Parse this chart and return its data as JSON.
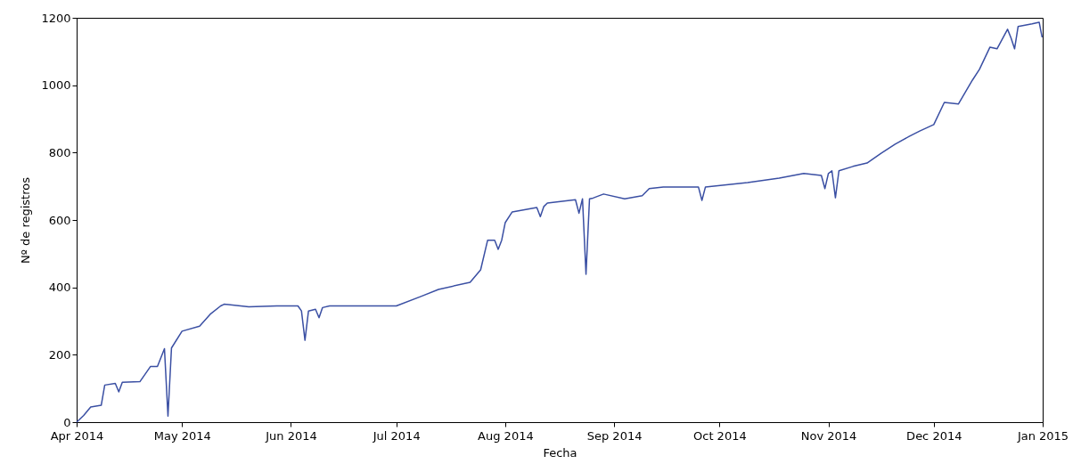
{
  "chart_data": {
    "type": "line",
    "xlabel": "Fecha",
    "ylabel": "Nº de registros",
    "x": [
      "2014-04-01",
      "2014-04-03",
      "2014-04-05",
      "2014-04-08",
      "2014-04-09",
      "2014-04-12",
      "2014-04-13",
      "2014-04-14",
      "2014-04-19",
      "2014-04-22",
      "2014-04-24",
      "2014-04-26",
      "2014-04-27",
      "2014-04-28",
      "2014-05-01",
      "2014-05-06",
      "2014-05-09",
      "2014-05-12",
      "2014-05-13",
      "2014-05-20",
      "2014-05-28",
      "2014-06-03",
      "2014-06-04",
      "2014-06-05",
      "2014-06-06",
      "2014-06-08",
      "2014-06-09",
      "2014-06-10",
      "2014-06-12",
      "2014-06-20",
      "2014-07-01",
      "2014-07-08",
      "2014-07-13",
      "2014-07-22",
      "2014-07-25",
      "2014-07-27",
      "2014-07-29",
      "2014-07-30",
      "2014-07-31",
      "2014-08-01",
      "2014-08-03",
      "2014-08-10",
      "2014-08-11",
      "2014-08-12",
      "2014-08-13",
      "2014-08-21",
      "2014-08-22",
      "2014-08-23",
      "2014-08-24",
      "2014-08-25",
      "2014-08-26",
      "2014-08-29",
      "2014-09-04",
      "2014-09-09",
      "2014-09-11",
      "2014-09-15",
      "2014-09-25",
      "2014-09-26",
      "2014-09-27",
      "2014-10-09",
      "2014-10-18",
      "2014-10-25",
      "2014-10-30",
      "2014-10-31",
      "2014-11-01",
      "2014-11-02",
      "2014-11-03",
      "2014-11-04",
      "2014-11-08",
      "2014-11-12",
      "2014-11-16",
      "2014-11-20",
      "2014-11-24",
      "2014-11-27",
      "2014-12-01",
      "2014-12-04",
      "2014-12-08",
      "2014-12-12",
      "2014-12-14",
      "2014-12-17",
      "2014-12-19",
      "2014-12-22",
      "2014-12-23",
      "2014-12-24",
      "2014-12-25",
      "2014-12-29",
      "2014-12-31",
      "2014-12-31T20:00"
    ],
    "series": [
      {
        "color": "#3a4fa3",
        "values": [
          0,
          20,
          45,
          50,
          110,
          115,
          90,
          118,
          120,
          165,
          165,
          218,
          18,
          220,
          270,
          285,
          320,
          345,
          350,
          342,
          345,
          345,
          330,
          243,
          330,
          335,
          310,
          340,
          345,
          345,
          345,
          373,
          394,
          415,
          452,
          540,
          540,
          513,
          540,
          592,
          624,
          637,
          610,
          640,
          650,
          660,
          620,
          663,
          439,
          663,
          665,
          677,
          663,
          672,
          693,
          698,
          698,
          658,
          698,
          711,
          724,
          738,
          732,
          693,
          738,
          746,
          666,
          746,
          759,
          769,
          798,
          825,
          848,
          864,
          883,
          949,
          944,
          1015,
          1047,
          1113,
          1108,
          1166,
          1140,
          1108,
          1174,
          1182,
          1187,
          1142
        ]
      }
    ],
    "xlim": [
      "2014-04-01",
      "2015-01-01"
    ],
    "xticks": [
      {
        "value": "2014-04-01",
        "label": "Apr 2014"
      },
      {
        "value": "2014-05-01",
        "label": "May 2014"
      },
      {
        "value": "2014-06-01",
        "label": "Jun 2014"
      },
      {
        "value": "2014-07-01",
        "label": "Jul 2014"
      },
      {
        "value": "2014-08-01",
        "label": "Aug 2014"
      },
      {
        "value": "2014-09-01",
        "label": "Sep 2014"
      },
      {
        "value": "2014-10-01",
        "label": "Oct 2014"
      },
      {
        "value": "2014-11-01",
        "label": "Nov 2014"
      },
      {
        "value": "2014-12-01",
        "label": "Dec 2014"
      },
      {
        "value": "2015-01-01",
        "label": "Jan 2015"
      }
    ],
    "ylim": [
      0,
      1200
    ],
    "yticks": [
      0,
      200,
      400,
      600,
      800,
      1000,
      1200
    ]
  }
}
